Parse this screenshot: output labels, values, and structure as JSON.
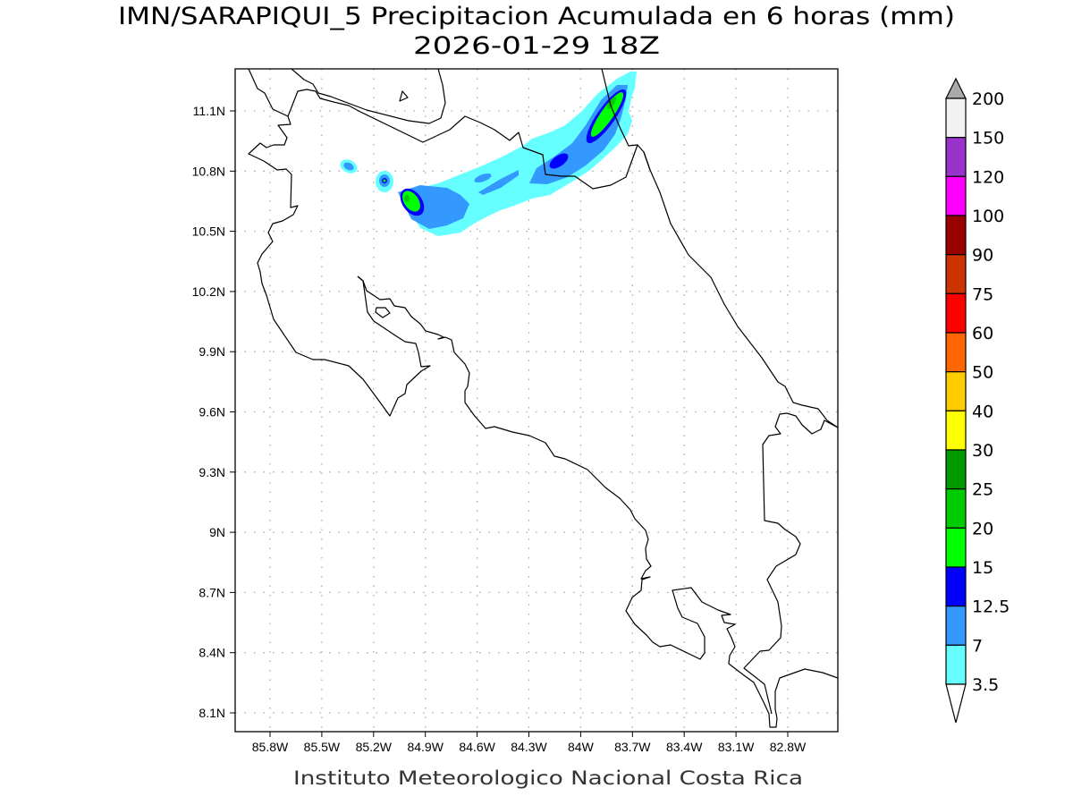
{
  "title": {
    "line1": "IMN/SARAPIQUI_5 Precipitacion Acumulada en 6 horas (mm)",
    "line2": "2026-01-29 18Z"
  },
  "footer": "Instituto Meteorologico Nacional Costa Rica",
  "map": {
    "lon_ticks": [
      "85.8W",
      "85.5W",
      "85.2W",
      "84.9W",
      "84.6W",
      "84.3W",
      "84W",
      "83.7W",
      "83.4W",
      "83.1W",
      "82.8W"
    ],
    "lat_ticks": [
      "11.1N",
      "10.8N",
      "10.5N",
      "10.2N",
      "9.9N",
      "9.6N",
      "9.3N",
      "9N",
      "8.7N",
      "8.4N",
      "8.1N"
    ],
    "lon_range": [
      86.0,
      82.51
    ],
    "lat_range": [
      8.0,
      11.31
    ]
  },
  "colorbar": {
    "levels": [
      "200",
      "150",
      "120",
      "100",
      "90",
      "75",
      "60",
      "50",
      "40",
      "30",
      "25",
      "20",
      "15",
      "12.5",
      "7",
      "3.5"
    ],
    "colors": [
      "#f2f2f2",
      "#9933cc",
      "#ff00ff",
      "#990000",
      "#cc3300",
      "#ff0000",
      "#ff6600",
      "#ffcc00",
      "#ffff00",
      "#009900",
      "#00cc00",
      "#00ff00",
      "#0000ff",
      "#3399ff",
      "#66ffff"
    ],
    "over_color": "#aaaaaa",
    "under_color": "#ffffff"
  }
}
